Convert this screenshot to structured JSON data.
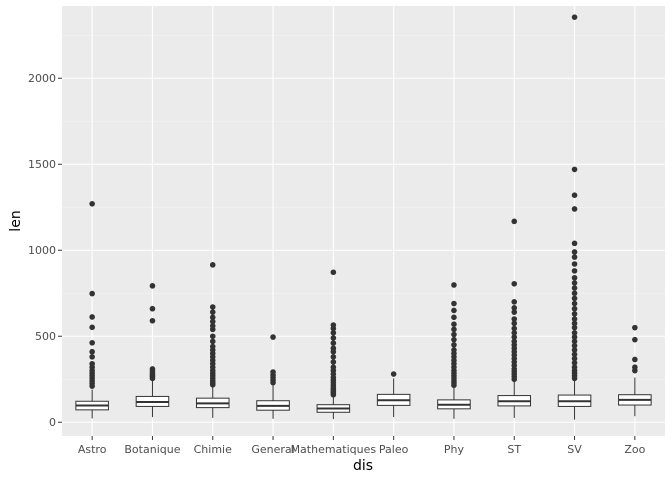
{
  "chart_data": {
    "type": "boxplot",
    "xlabel": "dis",
    "ylabel": "len",
    "ylim": [
      -80,
      2420
    ],
    "y_ticks": [
      0,
      500,
      1000,
      1500,
      2000
    ],
    "y_tick_labels": [
      "0",
      "500",
      "1000",
      "1500",
      "2000"
    ],
    "grid": true,
    "legend": "none",
    "colors": {
      "panel": "#ebebeb",
      "grid_major": "#ffffff",
      "grid_minor": "#f5f5f5",
      "box_fill": "#ffffff",
      "stroke": "#333333",
      "outlier": "#333333"
    },
    "categories": [
      "Astro",
      "Botanique",
      "Chimie",
      "General",
      "Mathematiques",
      "Paleo",
      "Phy",
      "ST",
      "SV",
      "Zoo"
    ],
    "boxes": [
      {
        "category": "Astro",
        "whisker_low": 22,
        "q1": 72,
        "median": 97,
        "q3": 122,
        "whisker_high": 190,
        "outliers": [
          1270,
          748,
          612,
          552,
          462,
          410,
          380,
          340,
          320,
          300,
          285,
          270,
          255,
          240,
          225,
          210
        ]
      },
      {
        "category": "Botanique",
        "whisker_low": 30,
        "q1": 92,
        "median": 118,
        "q3": 150,
        "whisker_high": 248,
        "outliers": [
          793,
          660,
          590,
          310,
          298,
          285,
          275,
          265,
          255
        ]
      },
      {
        "category": "Chimie",
        "whisker_low": 25,
        "q1": 85,
        "median": 110,
        "q3": 140,
        "whisker_high": 210,
        "outliers": [
          915,
          670,
          640,
          610,
          585,
          560,
          540,
          500,
          470,
          440,
          420,
          400,
          380,
          360,
          340,
          320,
          300,
          285,
          270,
          255,
          240,
          228,
          218
        ]
      },
      {
        "category": "General",
        "whisker_low": 20,
        "q1": 70,
        "median": 95,
        "q3": 125,
        "whisker_high": 215,
        "outliers": [
          495,
          292,
          275,
          260,
          245,
          230
        ]
      },
      {
        "category": "Mathematiques",
        "whisker_low": 18,
        "q1": 58,
        "median": 80,
        "q3": 102,
        "whisker_high": 150,
        "outliers": [
          872,
          565,
          545,
          520,
          490,
          460,
          430,
          410,
          380,
          350,
          320,
          300,
          280,
          260,
          245,
          230,
          215,
          200,
          190,
          180,
          170,
          160
        ]
      },
      {
        "category": "Paleo",
        "whisker_low": 30,
        "q1": 98,
        "median": 128,
        "q3": 162,
        "whisker_high": 255,
        "outliers": [
          280
        ]
      },
      {
        "category": "Phy",
        "whisker_low": 20,
        "q1": 78,
        "median": 102,
        "q3": 130,
        "whisker_high": 200,
        "outliers": [
          798,
          690,
          650,
          610,
          570,
          540,
          510,
          480,
          450,
          420,
          400,
          380,
          360,
          340,
          320,
          300,
          285,
          270,
          255,
          240,
          228,
          215
        ]
      },
      {
        "category": "ST",
        "whisker_low": 25,
        "q1": 95,
        "median": 122,
        "q3": 155,
        "whisker_high": 240,
        "outliers": [
          1168,
          805,
          700,
          665,
          640,
          600,
          575,
          545,
          520,
          495,
          470,
          450,
          430,
          410,
          390,
          370,
          350,
          330,
          310,
          295,
          280,
          265,
          250
        ]
      },
      {
        "category": "SV",
        "whisker_low": 15,
        "q1": 92,
        "median": 122,
        "q3": 158,
        "whisker_high": 242,
        "outliers": [
          2355,
          1470,
          1320,
          1240,
          1040,
          990,
          960,
          920,
          880,
          840,
          810,
          780,
          750,
          720,
          690,
          660,
          630,
          600,
          575,
          550,
          520,
          495,
          470,
          445,
          420,
          395,
          370,
          345,
          320,
          300,
          285,
          270,
          255
        ]
      },
      {
        "category": "Zoo",
        "whisker_low": 35,
        "q1": 100,
        "median": 130,
        "q3": 160,
        "whisker_high": 260,
        "outliers": [
          550,
          480,
          365,
          320,
          300
        ]
      }
    ]
  }
}
